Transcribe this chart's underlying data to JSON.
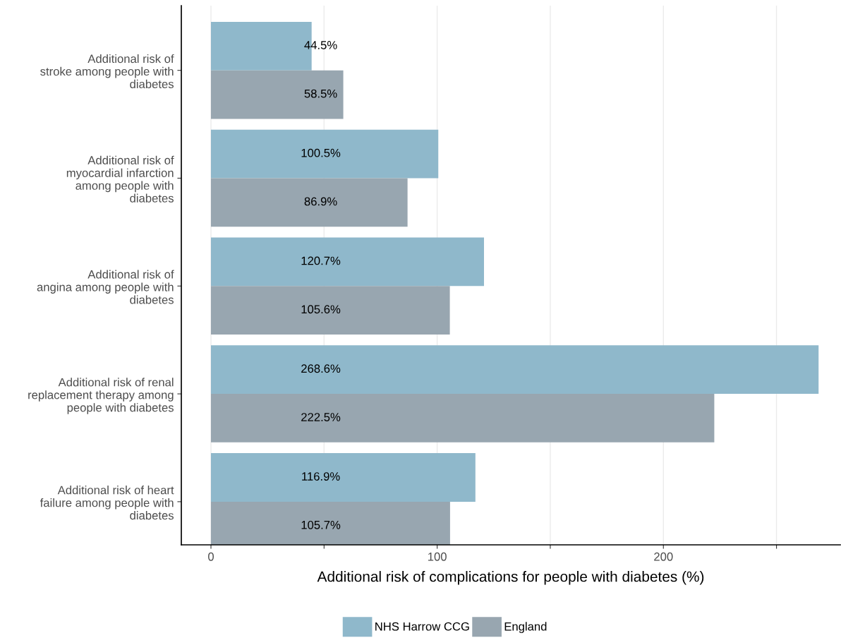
{
  "chart_data": {
    "type": "bar",
    "orientation": "horizontal",
    "categories": [
      "Additional risk of\nstroke among people with\ndiabetes",
      "Additional risk of\nmyocardial infarction\namong people with\ndiabetes",
      "Additional risk of\nangina among people with\ndiabetes",
      "Additional risk of renal\nreplacement therapy among\npeople with diabetes",
      "Additional risk of heart\nfailure among people with\ndiabetes"
    ],
    "series": [
      {
        "name": "NHS Harrow CCG",
        "color": "#8fb8cb",
        "values": [
          44.5,
          100.5,
          120.7,
          268.6,
          116.9
        ],
        "value_labels": [
          "44.5%",
          "100.5%",
          "120.7%",
          "268.6%",
          "116.9%"
        ]
      },
      {
        "name": "England",
        "color": "#98a6b0",
        "values": [
          58.5,
          86.9,
          105.6,
          222.5,
          105.7
        ],
        "value_labels": [
          "58.5%",
          "86.9%",
          "105.6%",
          "222.5%",
          "105.7%"
        ]
      }
    ],
    "xlabel": "Additional risk of complications for people with diabetes (%)",
    "xlim": [
      -13.1,
      278.2
    ],
    "xticks": [
      0,
      {
        "value": 50,
        "label": null
      },
      100,
      {
        "value": 150,
        "label": null
      },
      200,
      {
        "value": 250,
        "label": null
      }
    ],
    "grid": "x",
    "legend": "bottom"
  }
}
